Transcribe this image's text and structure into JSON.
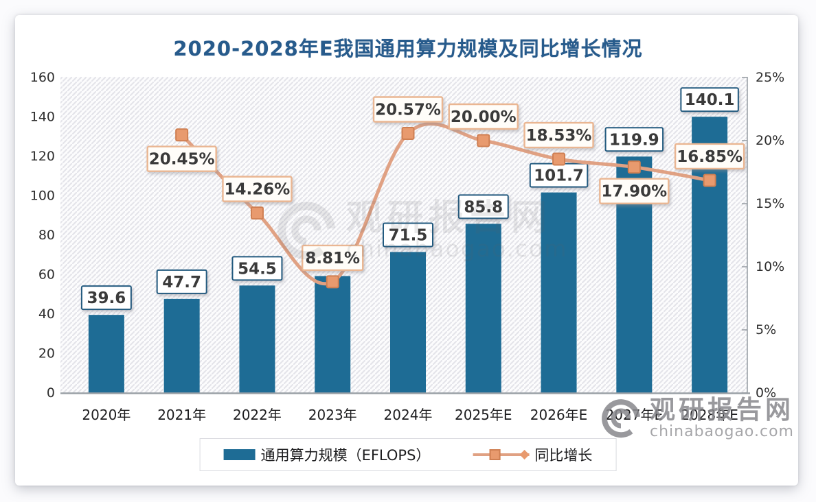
{
  "title": "2020-2028年E我国通用算力规模及同比增长情况",
  "legend": [
    {
      "label": "通用算力规模（EFLOPS）",
      "type": "bar"
    },
    {
      "label": "同比增长",
      "type": "line"
    }
  ],
  "watermark": {
    "brand": "观研报告网",
    "domain": "chinabaogao.com"
  },
  "colors": {
    "bar": "#1e6c95",
    "line": "#e0a183",
    "marker_fill": "#e89a6e",
    "marker_border": "#cf7f52",
    "bar_box_border": "#235a7f",
    "bar_box_bg": "#ffffff",
    "pct_box_border": "#eab692",
    "pct_box_bg": "#fffdf9",
    "box_text": "#3a3a3a",
    "axis_line": "#9aa0a6",
    "axis_text": "#2e2e2e",
    "title": "#275b8c",
    "hatch": "#e4e4ea",
    "watermark": "#88888d"
  },
  "chart_data": {
    "type": "bar+line",
    "title": "2020-2028年E我国通用算力规模及同比增长情况",
    "categories": [
      "2020年",
      "2021年",
      "2022年",
      "2023年",
      "2024年",
      "2025年E",
      "2026年E",
      "2027年E",
      "2028年E"
    ],
    "series": [
      {
        "name": "通用算力规模（EFLOPS）",
        "type": "bar",
        "axis": "left",
        "values": [
          39.6,
          47.7,
          54.5,
          59.3,
          71.5,
          85.8,
          101.7,
          119.9,
          140.1
        ],
        "labels": [
          "39.6",
          "47.7",
          "54.5",
          "",
          "71.5",
          "85.8",
          "101.7",
          "119.9",
          "140.1"
        ]
      },
      {
        "name": "同比增长",
        "type": "line",
        "axis": "right",
        "values": [
          null,
          20.45,
          14.26,
          8.81,
          20.57,
          20.0,
          18.53,
          17.9,
          16.85
        ],
        "labels": [
          "",
          "20.45%",
          "14.26%",
          "8.81%",
          "20.57%",
          "20.00%",
          "18.53%",
          "17.90%",
          "16.85%"
        ],
        "label_side": [
          "",
          "below",
          "above",
          "above",
          "above",
          "above",
          "above",
          "below",
          "above"
        ]
      }
    ],
    "left_axis": {
      "min": 0,
      "max": 160,
      "step": 20,
      "ticks": [
        "0",
        "20",
        "40",
        "60",
        "80",
        "100",
        "120",
        "140",
        "160"
      ]
    },
    "right_axis": {
      "min": 0,
      "max": 25,
      "step": 5,
      "ticks": [
        "0%",
        "5%",
        "10%",
        "15%",
        "20%",
        "25%"
      ]
    },
    "grid": false,
    "plot_background": "diagonal-hatch",
    "legend_position": "bottom"
  }
}
